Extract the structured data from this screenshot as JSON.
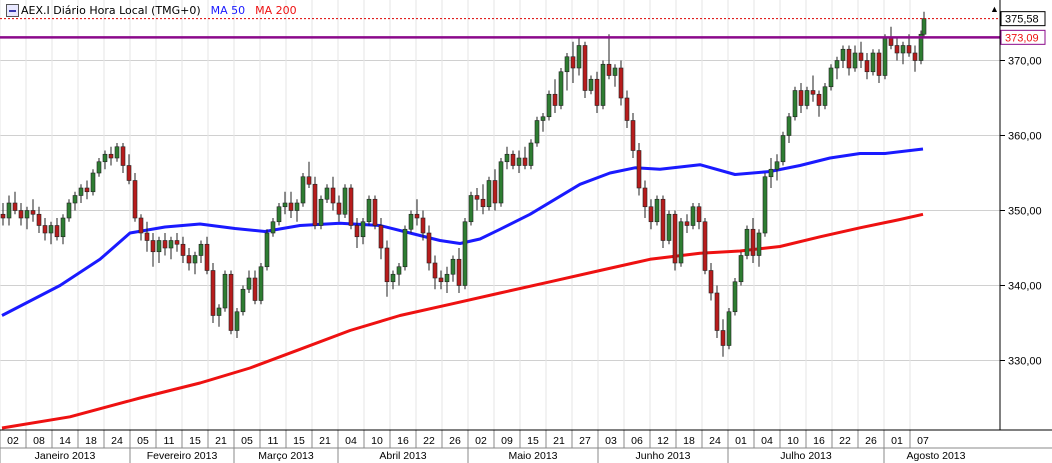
{
  "header": {
    "symbol_label": "AEX.I Diário Hora Local (TMG+0)",
    "ma50_label": "MA 50",
    "ma200_label": "MA 200",
    "warning_icon": "warning-triangle-icon"
  },
  "colors": {
    "candle_up": "#2e7d32",
    "candle_down": "#b71c1c",
    "ma50": "#1a1aff",
    "ma200": "#ee1111",
    "resistance": "#8b0a8b",
    "grid": "#d0d0d0"
  },
  "chart_data": {
    "type": "candlestick",
    "title": "AEX.I Diário Hora Local (TMG+0)",
    "y_range": [
      321,
      377
    ],
    "y_ticks": [
      330,
      340,
      350,
      360,
      370
    ],
    "y_axis_side": "right",
    "grid": true,
    "last_price": 375.58,
    "last_price_label": "375,58",
    "resistance_level": 373.09,
    "resistance_label": "373,09",
    "day_ticks": [
      "02",
      "08",
      "14",
      "18",
      "24",
      "05",
      "11",
      "15",
      "21",
      "05",
      "11",
      "15",
      "21",
      "04",
      "10",
      "16",
      "22",
      "26",
      "02",
      "09",
      "15",
      "21",
      "27",
      "03",
      "06",
      "12",
      "18",
      "24",
      "01",
      "04",
      "10",
      "16",
      "22",
      "26",
      "01",
      "07"
    ],
    "month_labels": [
      "Janeiro 2013",
      "Fevereiro 2013",
      "Março 2013",
      "Abril 2013",
      "Maio 2013",
      "Junho 2013",
      "Julho 2013",
      "Agosto 2013"
    ],
    "series": [
      {
        "name": "MA 50",
        "values": [
          [
            2,
            336.0
          ],
          [
            60,
            340.0
          ],
          [
            100,
            343.5
          ],
          [
            130,
            347.0
          ],
          [
            165,
            347.8
          ],
          [
            200,
            348.2
          ],
          [
            235,
            347.6
          ],
          [
            265,
            347.2
          ],
          [
            300,
            348.0
          ],
          [
            340,
            348.3
          ],
          [
            380,
            348.0
          ],
          [
            410,
            347.0
          ],
          [
            440,
            346.0
          ],
          [
            460,
            345.6
          ],
          [
            480,
            346.2
          ],
          [
            500,
            347.5
          ],
          [
            530,
            349.5
          ],
          [
            555,
            351.5
          ],
          [
            580,
            353.5
          ],
          [
            610,
            355.0
          ],
          [
            635,
            355.7
          ],
          [
            660,
            355.5
          ],
          [
            700,
            356.1
          ],
          [
            735,
            354.8
          ],
          [
            770,
            355.2
          ],
          [
            800,
            356.0
          ],
          [
            830,
            357.0
          ],
          [
            860,
            357.6
          ],
          [
            885,
            357.6
          ],
          [
            923,
            358.2
          ]
        ]
      },
      {
        "name": "MA 200",
        "values": [
          [
            2,
            321.0
          ],
          [
            70,
            322.5
          ],
          [
            140,
            325.0
          ],
          [
            200,
            327.0
          ],
          [
            250,
            329.0
          ],
          [
            300,
            331.5
          ],
          [
            350,
            334.0
          ],
          [
            400,
            336.0
          ],
          [
            450,
            337.5
          ],
          [
            500,
            339.0
          ],
          [
            550,
            340.5
          ],
          [
            600,
            342.0
          ],
          [
            650,
            343.5
          ],
          [
            700,
            344.3
          ],
          [
            740,
            344.6
          ],
          [
            780,
            345.2
          ],
          [
            820,
            346.5
          ],
          [
            860,
            347.7
          ],
          [
            900,
            348.8
          ],
          [
            923,
            349.5
          ]
        ]
      }
    ],
    "candles": [
      [
        3,
        349.5,
        351.0,
        348.0,
        349.0
      ],
      [
        9,
        349.0,
        352.0,
        348.0,
        351.0
      ],
      [
        15,
        351.0,
        352.5,
        349.5,
        350.0
      ],
      [
        21,
        350.0,
        351.0,
        348.0,
        349.0
      ],
      [
        27,
        349.0,
        350.5,
        347.5,
        350.0
      ],
      [
        33,
        350.0,
        351.5,
        348.5,
        349.5
      ],
      [
        39,
        349.5,
        350.5,
        347.0,
        348.0
      ],
      [
        45,
        348.0,
        349.0,
        346.0,
        347.0
      ],
      [
        51,
        347.0,
        348.5,
        345.5,
        348.0
      ],
      [
        57,
        348.0,
        349.0,
        346.0,
        346.5
      ],
      [
        63,
        346.5,
        349.5,
        345.5,
        349.0
      ],
      [
        69,
        349.0,
        351.5,
        348.5,
        351.0
      ],
      [
        75,
        351.0,
        352.5,
        350.0,
        352.0
      ],
      [
        81,
        352.0,
        353.5,
        351.0,
        353.0
      ],
      [
        87,
        353.0,
        354.0,
        351.5,
        352.5
      ],
      [
        93,
        352.5,
        355.5,
        352.0,
        355.0
      ],
      [
        99,
        355.0,
        357.0,
        354.5,
        356.5
      ],
      [
        105,
        356.5,
        358.0,
        355.5,
        357.5
      ],
      [
        111,
        357.5,
        358.5,
        356.0,
        357.0
      ],
      [
        117,
        357.0,
        359.0,
        356.5,
        358.5
      ],
      [
        123,
        358.5,
        359.0,
        355.0,
        356.0
      ],
      [
        129,
        356.0,
        357.5,
        353.5,
        354.0
      ],
      [
        135,
        354.0,
        355.0,
        348.5,
        349.0
      ],
      [
        141,
        349.0,
        349.5,
        346.0,
        347.0
      ],
      [
        147,
        347.0,
        348.5,
        344.5,
        346.0
      ],
      [
        153,
        346.0,
        347.0,
        342.5,
        344.5
      ],
      [
        159,
        344.5,
        346.5,
        343.0,
        346.0
      ],
      [
        165,
        346.0,
        347.0,
        344.0,
        345.0
      ],
      [
        171,
        345.0,
        346.5,
        343.5,
        346.0
      ],
      [
        177,
        346.0,
        347.0,
        344.5,
        345.5
      ],
      [
        183,
        345.5,
        346.5,
        343.0,
        344.0
      ],
      [
        189,
        344.0,
        345.0,
        342.0,
        343.0
      ],
      [
        195,
        343.0,
        344.5,
        341.5,
        344.0
      ],
      [
        201,
        344.0,
        346.0,
        343.0,
        345.5
      ],
      [
        207,
        345.5,
        346.5,
        341.5,
        342.0
      ],
      [
        213,
        342.0,
        343.0,
        335.0,
        336.0
      ],
      [
        219,
        336.0,
        337.5,
        334.5,
        337.0
      ],
      [
        225,
        337.0,
        342.0,
        336.5,
        341.5
      ],
      [
        231,
        341.5,
        342.0,
        333.5,
        334.0
      ],
      [
        237,
        334.0,
        337.0,
        333.0,
        336.5
      ],
      [
        243,
        336.5,
        340.0,
        336.0,
        339.5
      ],
      [
        249,
        339.5,
        342.0,
        339.0,
        341.0
      ],
      [
        255,
        341.0,
        342.0,
        337.5,
        338.0
      ],
      [
        261,
        338.0,
        343.0,
        337.5,
        342.5
      ],
      [
        267,
        342.5,
        347.5,
        342.0,
        347.0
      ],
      [
        273,
        347.0,
        349.0,
        346.5,
        348.5
      ],
      [
        279,
        348.5,
        351.0,
        348.0,
        350.5
      ],
      [
        285,
        350.5,
        352.5,
        349.5,
        351.0
      ],
      [
        291,
        351.0,
        352.5,
        349.0,
        350.0
      ],
      [
        297,
        350.0,
        351.5,
        348.5,
        351.0
      ],
      [
        303,
        351.0,
        355.0,
        350.5,
        354.5
      ],
      [
        309,
        354.5,
        356.5,
        353.0,
        353.5
      ],
      [
        315,
        353.5,
        354.5,
        347.5,
        348.0
      ],
      [
        321,
        348.0,
        352.0,
        347.5,
        351.5
      ],
      [
        327,
        351.5,
        353.5,
        351.0,
        353.0
      ],
      [
        333,
        353.0,
        354.5,
        350.0,
        351.0
      ],
      [
        339,
        351.0,
        352.0,
        348.5,
        349.5
      ],
      [
        345,
        349.5,
        353.5,
        349.0,
        353.0
      ],
      [
        351,
        353.0,
        353.5,
        347.5,
        348.0
      ],
      [
        357,
        348.0,
        349.0,
        345.0,
        346.5
      ],
      [
        363,
        346.5,
        349.0,
        345.5,
        348.5
      ],
      [
        369,
        348.5,
        352.0,
        348.0,
        351.5
      ],
      [
        375,
        351.5,
        352.0,
        347.5,
        348.0
      ],
      [
        381,
        348.0,
        349.0,
        343.5,
        345.0
      ],
      [
        387,
        345.0,
        346.0,
        338.5,
        340.5
      ],
      [
        393,
        340.5,
        342.0,
        339.5,
        341.5
      ],
      [
        399,
        341.5,
        343.0,
        340.0,
        342.5
      ],
      [
        405,
        342.5,
        348.0,
        342.0,
        347.5
      ],
      [
        411,
        347.5,
        350.0,
        347.0,
        349.5
      ],
      [
        417,
        349.5,
        351.5,
        348.0,
        349.0
      ],
      [
        423,
        349.0,
        350.0,
        346.0,
        347.0
      ],
      [
        429,
        347.0,
        348.0,
        342.0,
        343.0
      ],
      [
        435,
        343.0,
        344.0,
        339.5,
        341.0
      ],
      [
        441,
        341.0,
        342.0,
        339.5,
        340.5
      ],
      [
        447,
        340.5,
        342.5,
        339.0,
        341.5
      ],
      [
        453,
        341.5,
        344.0,
        340.5,
        343.5
      ],
      [
        459,
        343.5,
        345.0,
        339.0,
        340.0
      ],
      [
        465,
        340.0,
        349.0,
        339.5,
        348.5
      ],
      [
        471,
        348.5,
        352.5,
        348.0,
        352.0
      ],
      [
        477,
        352.0,
        353.0,
        350.0,
        351.5
      ],
      [
        483,
        351.5,
        353.5,
        349.5,
        350.5
      ],
      [
        489,
        350.5,
        354.5,
        350.0,
        354.0
      ],
      [
        495,
        354.0,
        355.5,
        350.0,
        351.0
      ],
      [
        501,
        351.0,
        357.0,
        350.5,
        356.5
      ],
      [
        507,
        356.5,
        358.5,
        355.5,
        357.5
      ],
      [
        513,
        357.5,
        358.0,
        355.5,
        356.0
      ],
      [
        519,
        356.0,
        358.0,
        355.0,
        357.0
      ],
      [
        525,
        357.0,
        358.5,
        355.5,
        356.0
      ],
      [
        531,
        356.0,
        359.5,
        355.5,
        359.0
      ],
      [
        537,
        359.0,
        362.5,
        358.5,
        362.0
      ],
      [
        543,
        362.0,
        363.0,
        360.5,
        362.5
      ],
      [
        549,
        362.5,
        366.0,
        362.0,
        365.5
      ],
      [
        555,
        365.5,
        367.5,
        363.0,
        364.0
      ],
      [
        561,
        364.0,
        369.0,
        363.5,
        368.5
      ],
      [
        567,
        368.5,
        371.0,
        366.0,
        370.5
      ],
      [
        573,
        370.5,
        372.5,
        367.0,
        369.0
      ],
      [
        579,
        369.0,
        373.0,
        368.0,
        372.0
      ],
      [
        585,
        372.0,
        372.5,
        365.0,
        366.0
      ],
      [
        591,
        366.0,
        368.0,
        365.5,
        367.5
      ],
      [
        597,
        367.5,
        368.5,
        363.0,
        364.0
      ],
      [
        603,
        364.0,
        370.0,
        363.5,
        369.5
      ],
      [
        609,
        369.5,
        373.5,
        367.5,
        368.0
      ],
      [
        615,
        368.0,
        369.5,
        366.5,
        369.0
      ],
      [
        621,
        369.0,
        370.0,
        364.0,
        365.0
      ],
      [
        627,
        365.0,
        366.0,
        361.0,
        362.0
      ],
      [
        633,
        362.0,
        363.0,
        357.0,
        358.0
      ],
      [
        639,
        358.0,
        359.0,
        352.0,
        353.0
      ],
      [
        645,
        353.0,
        354.0,
        349.0,
        350.5
      ],
      [
        651,
        350.5,
        351.5,
        347.5,
        348.5
      ],
      [
        657,
        348.5,
        352.0,
        348.0,
        351.5
      ],
      [
        663,
        351.5,
        352.0,
        345.0,
        346.0
      ],
      [
        669,
        346.0,
        350.0,
        345.5,
        349.5
      ],
      [
        675,
        349.5,
        350.0,
        342.0,
        343.0
      ],
      [
        681,
        343.0,
        349.0,
        342.5,
        348.5
      ],
      [
        687,
        348.5,
        349.5,
        347.0,
        348.0
      ],
      [
        693,
        348.0,
        351.0,
        347.5,
        350.5
      ],
      [
        699,
        350.5,
        351.0,
        347.5,
        348.5
      ],
      [
        705,
        348.5,
        349.0,
        341.5,
        342.0
      ],
      [
        711,
        342.0,
        343.0,
        338.0,
        339.0
      ],
      [
        717,
        339.0,
        340.0,
        333.0,
        334.0
      ],
      [
        723,
        334.0,
        335.5,
        330.5,
        332.0
      ],
      [
        729,
        332.0,
        337.0,
        331.5,
        336.5
      ],
      [
        735,
        336.5,
        341.0,
        336.0,
        340.5
      ],
      [
        741,
        340.5,
        344.5,
        340.0,
        344.0
      ],
      [
        747,
        344.0,
        348.0,
        343.5,
        347.5
      ],
      [
        753,
        347.5,
        349.0,
        343.0,
        344.0
      ],
      [
        759,
        344.0,
        347.5,
        342.5,
        347.0
      ],
      [
        765,
        347.0,
        355.0,
        346.5,
        354.5
      ],
      [
        771,
        354.5,
        357.0,
        353.0,
        355.5
      ],
      [
        777,
        355.5,
        357.5,
        354.0,
        356.5
      ],
      [
        783,
        356.5,
        360.5,
        356.0,
        360.0
      ],
      [
        789,
        360.0,
        363.0,
        359.0,
        362.5
      ],
      [
        795,
        362.5,
        366.5,
        362.0,
        366.0
      ],
      [
        801,
        366.0,
        367.0,
        363.0,
        364.0
      ],
      [
        807,
        364.0,
        366.5,
        363.5,
        366.0
      ],
      [
        813,
        366.0,
        368.0,
        364.5,
        365.5
      ],
      [
        819,
        365.5,
        366.0,
        362.5,
        364.0
      ],
      [
        825,
        364.0,
        367.0,
        363.5,
        366.5
      ],
      [
        831,
        366.5,
        369.5,
        366.0,
        369.0
      ],
      [
        837,
        369.0,
        370.5,
        367.5,
        370.0
      ],
      [
        843,
        370.0,
        372.0,
        369.0,
        371.5
      ],
      [
        849,
        371.5,
        372.0,
        368.0,
        369.0
      ],
      [
        855,
        369.0,
        372.0,
        368.5,
        371.0
      ],
      [
        861,
        371.0,
        372.5,
        369.0,
        370.0
      ],
      [
        867,
        370.0,
        371.0,
        367.5,
        368.5
      ],
      [
        873,
        368.5,
        371.5,
        368.0,
        371.0
      ],
      [
        879,
        371.0,
        371.5,
        367.0,
        368.0
      ],
      [
        885,
        368.0,
        373.5,
        367.5,
        373.0
      ],
      [
        891,
        373.0,
        374.5,
        371.5,
        372.0
      ],
      [
        897,
        372.0,
        373.0,
        370.0,
        371.0
      ],
      [
        903,
        371.0,
        372.5,
        369.5,
        372.0
      ],
      [
        909,
        372.0,
        373.5,
        370.5,
        371.0
      ],
      [
        915,
        371.0,
        372.0,
        368.5,
        370.0
      ],
      [
        921,
        370.0,
        374.0,
        369.5,
        373.5
      ],
      [
        924,
        373.5,
        376.5,
        373.0,
        375.58
      ]
    ]
  }
}
